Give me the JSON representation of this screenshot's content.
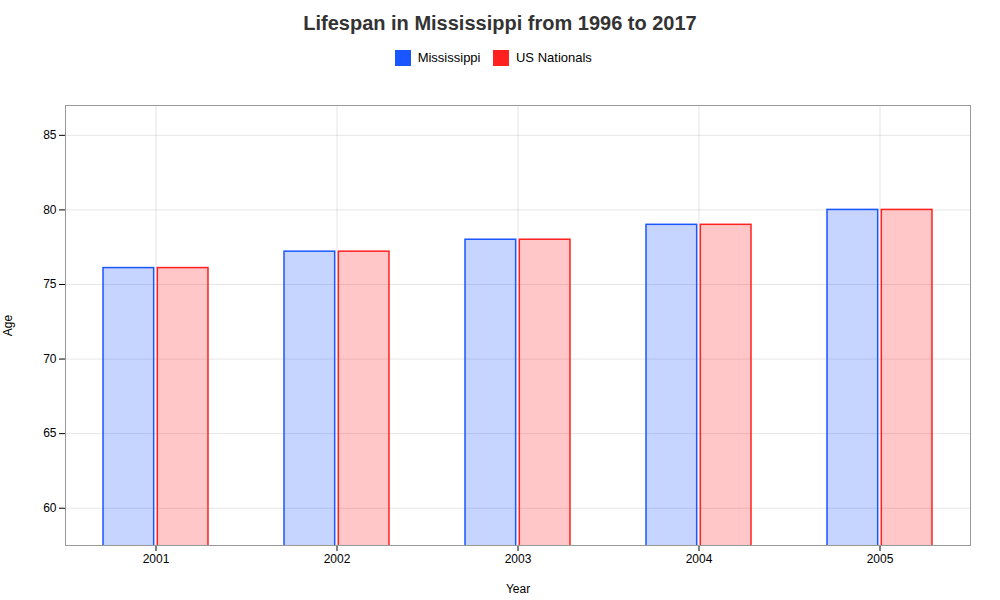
{
  "chart_data": {
    "type": "bar",
    "title": "Lifespan in Mississippi from 1996 to 2017",
    "xlabel": "Year",
    "ylabel": "Age",
    "categories": [
      "2001",
      "2002",
      "2003",
      "2004",
      "2005"
    ],
    "series": [
      {
        "name": "Mississippi",
        "color": "#1A56FF",
        "values": [
          76.1,
          77.2,
          78.0,
          79.0,
          80.0
        ]
      },
      {
        "name": "US Nationals",
        "color": "#FF2020",
        "values": [
          76.1,
          77.2,
          78.0,
          79.0,
          80.0
        ]
      }
    ],
    "ylim": [
      57.5,
      87
    ],
    "yticks": [
      60,
      65,
      70,
      75,
      80,
      85
    ],
    "grid": true,
    "legend": "upper center"
  }
}
